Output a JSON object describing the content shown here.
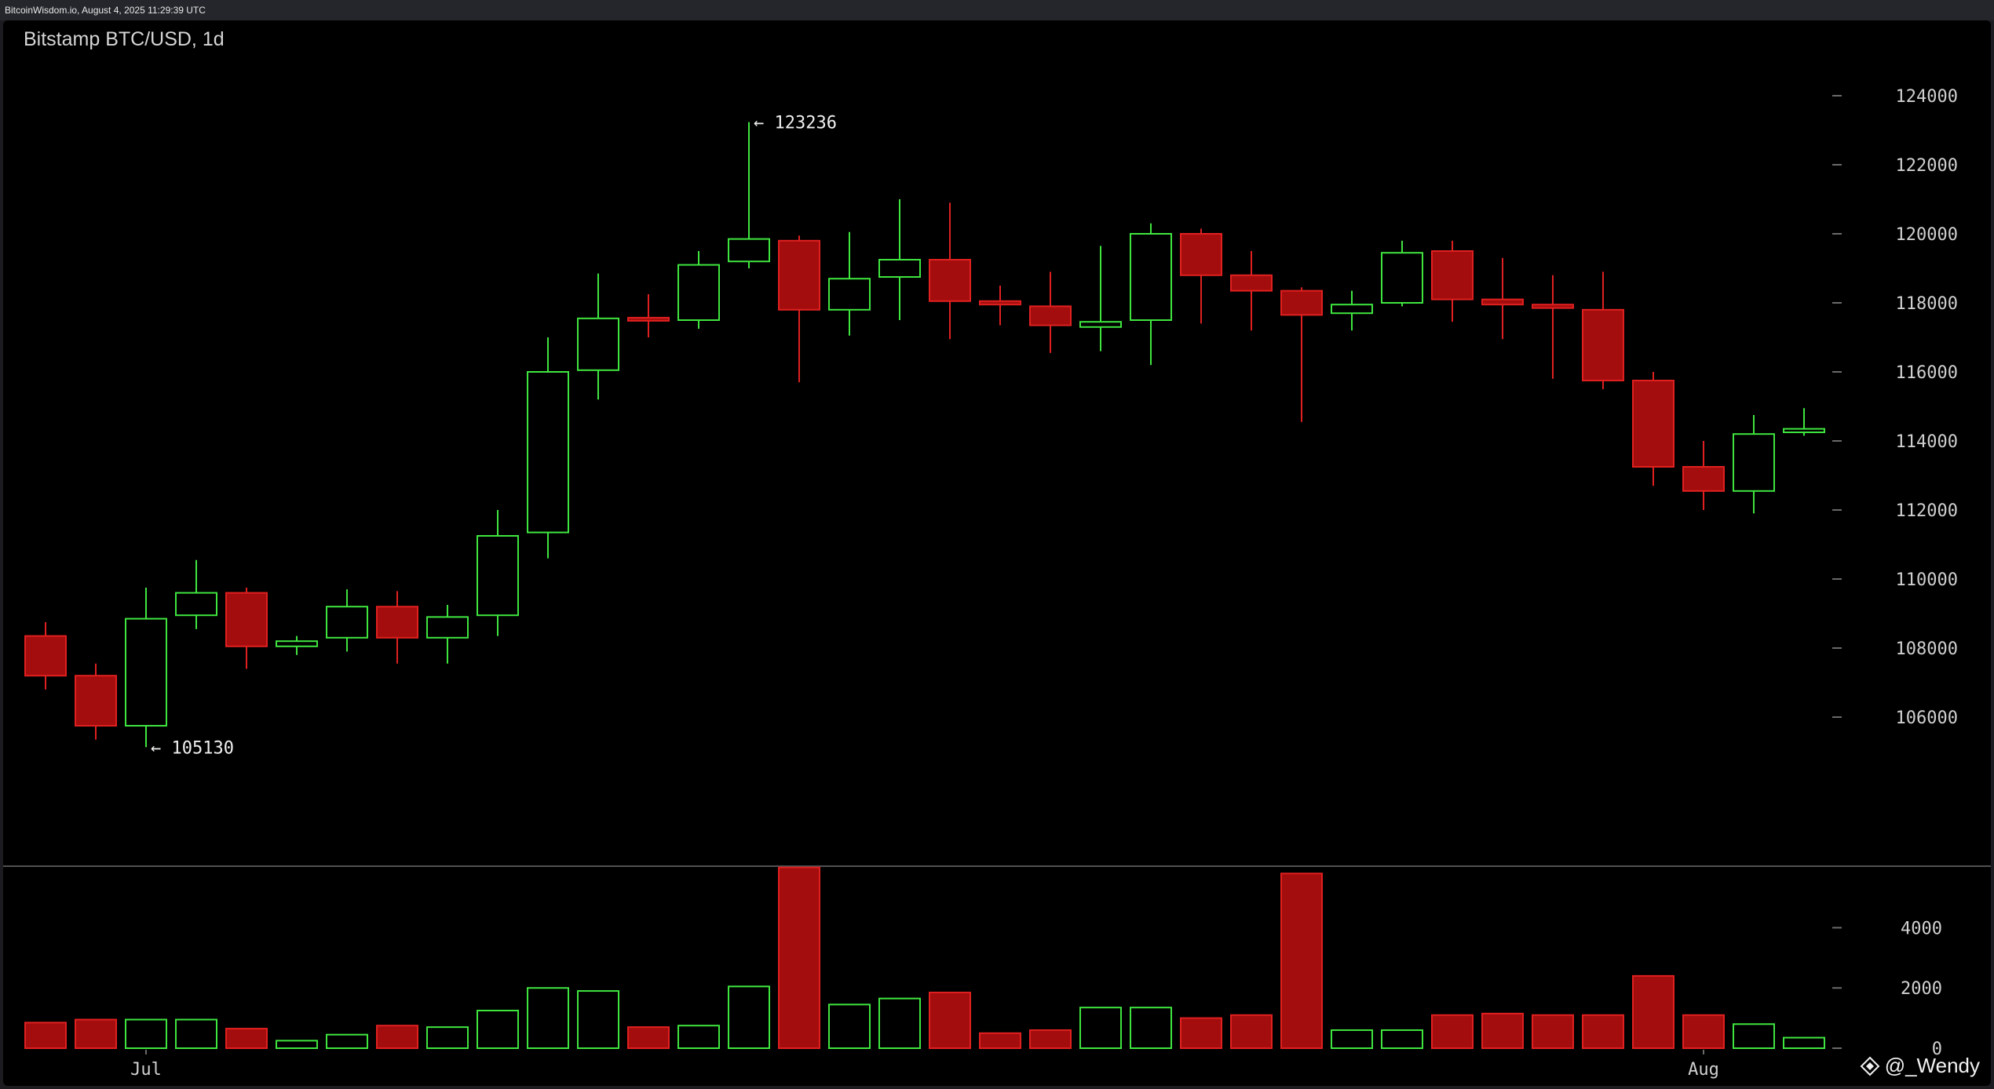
{
  "window": {
    "header_text": "BitcoinWisdom.io, August 4, 2025 11:29:39 UTC"
  },
  "chart_title": "Bitstamp BTC/USD, 1d",
  "watermark": {
    "text": "@_Wendy",
    "icon": "diamond-logo-icon"
  },
  "chart_data": [
    {
      "type": "candlestick",
      "title": "Bitstamp BTC/USD, 1d",
      "x_tick_labels": [
        {
          "label": "Jul",
          "at_candle": 2
        },
        {
          "label": "Aug",
          "at_candle": 33
        }
      ],
      "y_ticks": [
        106000,
        108000,
        110000,
        112000,
        114000,
        116000,
        118000,
        120000,
        122000,
        124000
      ],
      "y_range": [
        103000,
        125500
      ],
      "annotations": [
        {
          "text": "← 123236",
          "value": 123236,
          "candle": 14
        },
        {
          "text": "← 105130",
          "value": 105130,
          "candle": 2
        }
      ],
      "grid": false,
      "colors": {
        "up": "#3fe53f",
        "down": "#a30d0d",
        "down_edge": "#e02020"
      },
      "candles": [
        {
          "o": 108350,
          "h": 108750,
          "l": 106800,
          "c": 107200
        },
        {
          "o": 107200,
          "h": 107550,
          "l": 105350,
          "c": 105750
        },
        {
          "o": 105750,
          "h": 109750,
          "l": 105130,
          "c": 108850
        },
        {
          "o": 108950,
          "h": 110550,
          "l": 108550,
          "c": 109600
        },
        {
          "o": 109600,
          "h": 109750,
          "l": 107400,
          "c": 108050
        },
        {
          "o": 108050,
          "h": 108350,
          "l": 107800,
          "c": 108200
        },
        {
          "o": 108300,
          "h": 109700,
          "l": 107900,
          "c": 109200
        },
        {
          "o": 109200,
          "h": 109650,
          "l": 107550,
          "c": 108300
        },
        {
          "o": 108300,
          "h": 109250,
          "l": 107550,
          "c": 108900
        },
        {
          "o": 108950,
          "h": 112000,
          "l": 108350,
          "c": 111250
        },
        {
          "o": 111350,
          "h": 117000,
          "l": 110600,
          "c": 116000
        },
        {
          "o": 116050,
          "h": 118850,
          "l": 115200,
          "c": 117550
        },
        {
          "o": 117550,
          "h": 118250,
          "l": 117000,
          "c": 117500
        },
        {
          "o": 117500,
          "h": 119500,
          "l": 117250,
          "c": 119100
        },
        {
          "o": 119200,
          "h": 123236,
          "l": 119000,
          "c": 119850
        },
        {
          "o": 119800,
          "h": 119950,
          "l": 115700,
          "c": 117800
        },
        {
          "o": 117800,
          "h": 120050,
          "l": 117050,
          "c": 118700
        },
        {
          "o": 118750,
          "h": 121000,
          "l": 117500,
          "c": 119250
        },
        {
          "o": 119250,
          "h": 120900,
          "l": 116950,
          "c": 118050
        },
        {
          "o": 118050,
          "h": 118500,
          "l": 117350,
          "c": 117950
        },
        {
          "o": 117900,
          "h": 118900,
          "l": 116550,
          "c": 117350
        },
        {
          "o": 117300,
          "h": 119650,
          "l": 116600,
          "c": 117450
        },
        {
          "o": 117500,
          "h": 120300,
          "l": 116200,
          "c": 120000
        },
        {
          "o": 120000,
          "h": 120150,
          "l": 117400,
          "c": 118800
        },
        {
          "o": 118800,
          "h": 119500,
          "l": 117200,
          "c": 118350
        },
        {
          "o": 118350,
          "h": 118450,
          "l": 114550,
          "c": 117650
        },
        {
          "o": 117700,
          "h": 118350,
          "l": 117200,
          "c": 117950
        },
        {
          "o": 118000,
          "h": 119800,
          "l": 117900,
          "c": 119450
        },
        {
          "o": 119500,
          "h": 119800,
          "l": 117450,
          "c": 118100
        },
        {
          "o": 118100,
          "h": 119300,
          "l": 116950,
          "c": 117950
        },
        {
          "o": 117950,
          "h": 118800,
          "l": 115800,
          "c": 117850
        },
        {
          "o": 117800,
          "h": 118900,
          "l": 115500,
          "c": 115750
        },
        {
          "o": 115750,
          "h": 116000,
          "l": 112700,
          "c": 113250
        },
        {
          "o": 113250,
          "h": 114000,
          "l": 112000,
          "c": 112550
        },
        {
          "o": 112550,
          "h": 114750,
          "l": 111900,
          "c": 114200
        },
        {
          "o": 114250,
          "h": 114950,
          "l": 114150,
          "c": 114350
        }
      ],
      "volume": {
        "y_ticks": [
          0,
          2000,
          4000
        ],
        "y_range": [
          0,
          5600
        ],
        "values": [
          850,
          950,
          950,
          950,
          650,
          250,
          450,
          750,
          700,
          1250,
          2000,
          1900,
          700,
          750,
          2050,
          6000,
          1450,
          1650,
          1850,
          500,
          600,
          1350,
          1350,
          1000,
          1100,
          5800,
          600,
          600,
          1100,
          1150,
          1100,
          1100,
          2400,
          1100,
          800,
          350
        ]
      }
    }
  ]
}
